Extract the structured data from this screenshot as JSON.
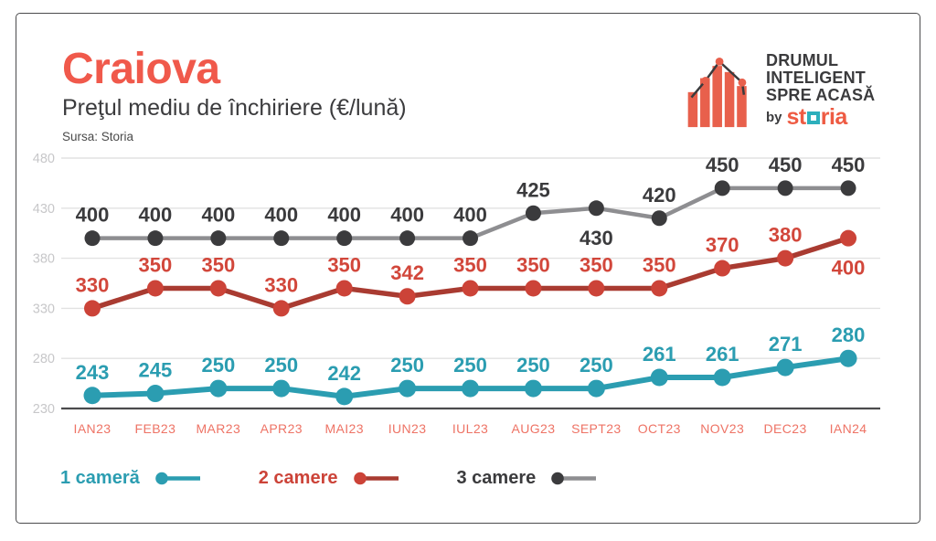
{
  "header": {
    "title": "Craiova",
    "subtitle": "Preţul mediu de închiriere (€/lună)",
    "source": "Sursa: Storia"
  },
  "logo": {
    "line1": "DRUMUL",
    "line2": "INTELIGENT",
    "line3": "SPRE ACASĂ",
    "by": "by",
    "brand_prefix": "st",
    "brand_suffix": "ria"
  },
  "chart_data": {
    "type": "line",
    "title": "Craiova",
    "subtitle": "Preţul mediu de închiriere (€/lună)",
    "categories": [
      "IAN23",
      "FEB23",
      "MAR23",
      "APR23",
      "MAI23",
      "IUN23",
      "IUL23",
      "AUG23",
      "SEPT23",
      "OCT23",
      "NOV23",
      "DEC23",
      "IAN24"
    ],
    "series": [
      {
        "name": "1 cameră",
        "values": [
          243,
          245,
          250,
          250,
          242,
          250,
          250,
          250,
          250,
          261,
          261,
          271,
          280
        ],
        "line_color": "#2b9db1",
        "dot_color": "#2b9db1",
        "label_color": "#2b9db1",
        "labels_below": []
      },
      {
        "name": "2 camere",
        "values": [
          330,
          350,
          350,
          330,
          350,
          342,
          350,
          350,
          350,
          350,
          370,
          380,
          400
        ],
        "line_color": "#a93b31",
        "dot_color": "#cc4338",
        "label_color": "#d2473b",
        "labels_below": [
          12
        ]
      },
      {
        "name": "3 camere",
        "values": [
          400,
          400,
          400,
          400,
          400,
          400,
          400,
          425,
          430,
          420,
          450,
          450,
          450
        ],
        "line_color": "#8e8e91",
        "dot_color": "#3b3b3d",
        "label_color": "#3b3b3d",
        "labels_below": [
          8
        ]
      }
    ],
    "yticks": [
      480,
      430,
      380,
      330,
      280,
      230
    ],
    "ylim": [
      230,
      480
    ],
    "grid": true,
    "legend_position": "bottom-left",
    "colors": {
      "x_label": "#ee7365",
      "y_label": "#c7c7c9",
      "gridline": "#e2e2e2",
      "axis": "#4b4b4d"
    }
  }
}
